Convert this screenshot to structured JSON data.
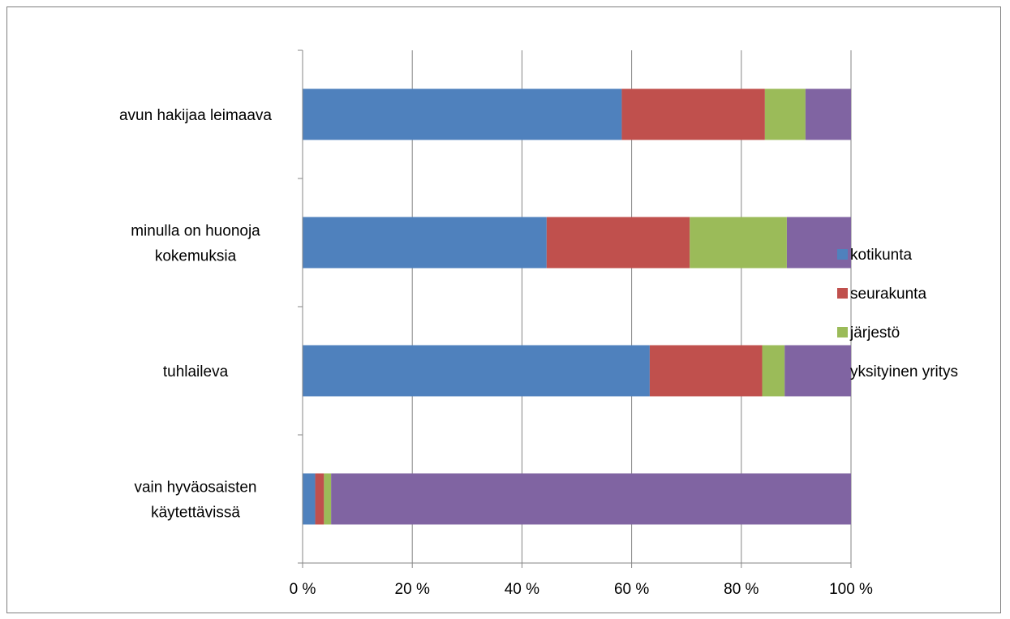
{
  "chart_data": {
    "type": "bar",
    "orientation": "horizontal",
    "stacked": "percent",
    "categories": [
      [
        "avun hakijaa leimaava"
      ],
      [
        "minulla on huonoja",
        "kokemuksia"
      ],
      [
        "tuhlaileva"
      ],
      [
        "vain hyväosaisten",
        "käytettävissä"
      ]
    ],
    "series": [
      {
        "name": "kotikunta",
        "color": "#4F81BD",
        "values": [
          58.2,
          44.5,
          63.3,
          2.3
        ]
      },
      {
        "name": "seurakunta",
        "color": "#C0504D",
        "values": [
          26.1,
          26.1,
          20.5,
          1.6
        ]
      },
      {
        "name": "järjestö",
        "color": "#9BBB59",
        "values": [
          7.4,
          17.7,
          4.1,
          1.3
        ]
      },
      {
        "name": "yksityinen yritys",
        "color": "#8064A2",
        "values": [
          8.3,
          11.7,
          12.1,
          94.8
        ]
      }
    ],
    "xlim": [
      0,
      100
    ],
    "xticks": [
      "0 %",
      "20 %",
      "40 %",
      "60 %",
      "80 %",
      "100 %"
    ],
    "grid": true,
    "legend_position": "right",
    "title": "",
    "xlabel": "",
    "ylabel": ""
  }
}
